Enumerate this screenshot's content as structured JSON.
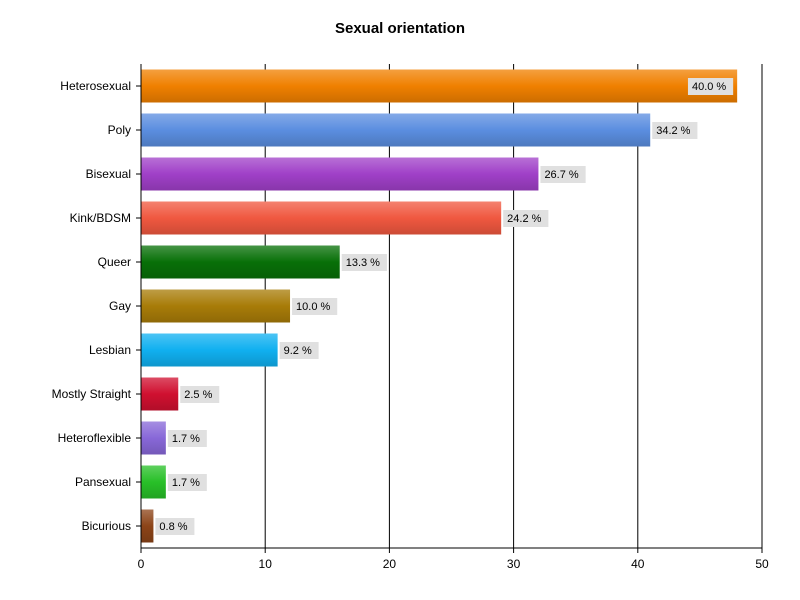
{
  "chart_data": {
    "type": "bar",
    "orientation": "horizontal",
    "title": "Sexual orientation",
    "xlabel": "",
    "ylabel": "",
    "xlim": [
      0,
      50
    ],
    "x_ticks": [
      0,
      10,
      20,
      30,
      40,
      50
    ],
    "grid": "vertical",
    "legend": "none",
    "categories": [
      "Heterosexual",
      "Poly",
      "Bisexual",
      "Kink/BDSM",
      "Queer",
      "Gay",
      "Lesbian",
      "Mostly Straight",
      "Heteroflexible",
      "Pansexual",
      "Bicurious"
    ],
    "values": [
      48,
      41,
      32,
      29,
      16,
      12,
      11,
      3,
      2,
      2,
      1
    ],
    "data_labels": [
      "40.0 %",
      "34.2 %",
      "26.7 %",
      "24.2 %",
      "13.3 %",
      "10.0 %",
      "9.2 %",
      "2.5 %",
      "1.7 %",
      "1.7 %",
      "0.8 %"
    ],
    "colors": [
      "#f08000",
      "#5b8ee0",
      "#a040c8",
      "#f05840",
      "#087008",
      "#a87c08",
      "#10b0f0",
      "#d01030",
      "#8868d8",
      "#28c028",
      "#8c4418"
    ]
  }
}
